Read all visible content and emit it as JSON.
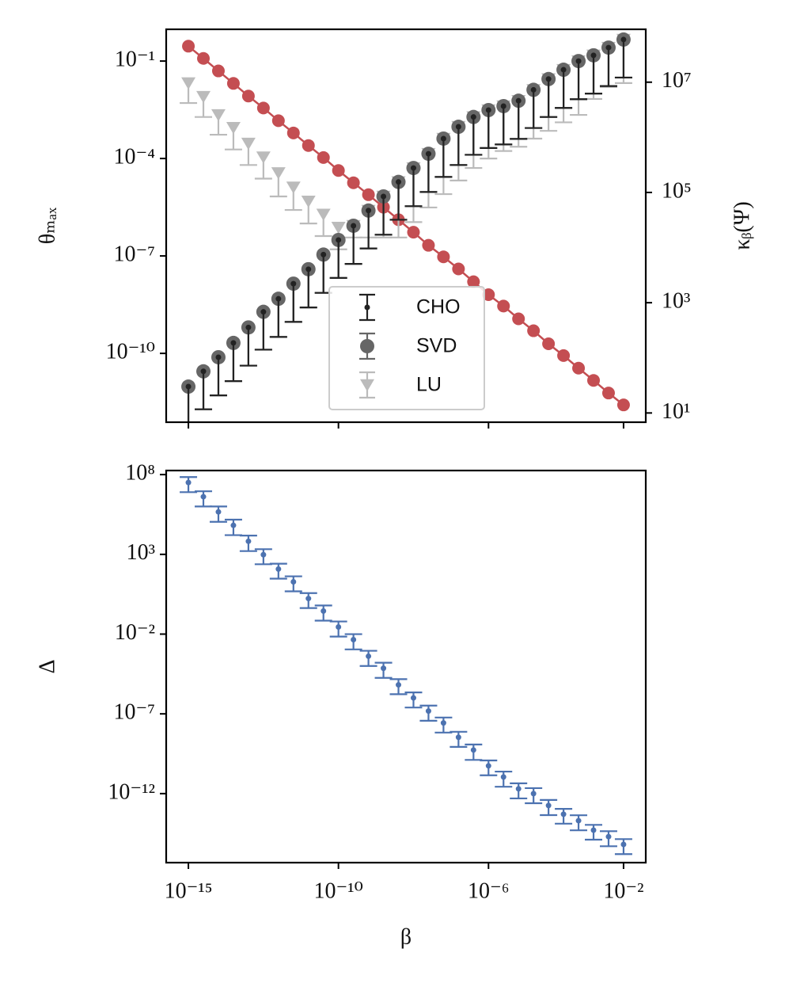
{
  "chart_data": [
    {
      "type": "errorbar",
      "y_label": "θₘₐₓ",
      "y2_label": "κᵦ(Ψ)",
      "log_y": true,
      "log_y2": true,
      "ylim": [
        7.6e-13,
        0.95
      ],
      "yticks": [
        {
          "value": 0.1,
          "label": "10⁻¹"
        },
        {
          "value": 0.0001,
          "label": "10⁻⁴"
        },
        {
          "value": 1e-07,
          "label": "10⁻⁷"
        },
        {
          "value": 1e-10,
          "label": "10⁻¹⁰"
        }
      ],
      "y2lim": [
        6.8,
        91000000.0
      ],
      "y2ticks": [
        {
          "value": 10000000.0,
          "label": "10⁷"
        },
        {
          "value": 100000.0,
          "label": "10⁵"
        },
        {
          "value": 1000.0,
          "label": "10³"
        },
        {
          "value": 10,
          "label": "10¹"
        }
      ],
      "y2_color": "#c44e52",
      "legend": "lower center",
      "series": [
        {
          "name": "CHO",
          "color": "#222222",
          "marker": ".",
          "values": [
            9.5e-12,
            2.8e-11,
            7.6e-11,
            2.1e-10,
            6.3e-10,
            1.9e-09,
            4.8e-09,
            1.4e-08,
            3.9e-08,
            1.1e-07,
            3.1e-07,
            8.5e-07,
            2.5e-06,
            6.8e-06,
            1.9e-05,
            5.1e-05,
            0.00014,
            0.00041,
            0.00095,
            0.0019,
            0.0031,
            0.0041,
            0.006,
            0.013,
            0.028,
            0.054,
            0.1,
            0.15,
            0.26,
            0.46
          ],
          "lower": [
            6.3e-13,
            1.9e-12,
            5.1e-12,
            1.4e-11,
            4.2e-11,
            1.3e-10,
            3.2e-10,
            9.3e-10,
            2.6e-09,
            7.3e-09,
            2.1e-08,
            5.7e-08,
            1.7e-07,
            4.5e-07,
            1.3e-06,
            3.4e-06,
            9.3e-06,
            2.7e-05,
            6.3e-05,
            0.00013,
            0.00021,
            0.00027,
            0.0004,
            0.00087,
            0.0019,
            0.0036,
            0.0067,
            0.01,
            0.017,
            0.031
          ]
        },
        {
          "name": "SVD",
          "color": "#666666",
          "marker": "o",
          "values": [
            9.5e-12,
            2.8e-11,
            7.6e-11,
            2.1e-10,
            6.3e-10,
            1.9e-09,
            4.8e-09,
            1.4e-08,
            3.9e-08,
            1.1e-07,
            3.1e-07,
            8.5e-07,
            2.5e-06,
            6.8e-06,
            1.9e-05,
            5.1e-05,
            0.00014,
            0.00041,
            0.00095,
            0.0019,
            0.0031,
            0.0041,
            0.006,
            0.013,
            0.028,
            0.054,
            0.1,
            0.15,
            0.26,
            0.46
          ],
          "lower": [
            6.3e-13,
            1.9e-12,
            5.1e-12,
            1.4e-11,
            4.2e-11,
            1.3e-10,
            3.2e-10,
            9.3e-10,
            2.6e-09,
            7.3e-09,
            2.1e-08,
            5.7e-08,
            1.7e-07,
            4.5e-07,
            1.3e-06,
            3.4e-06,
            9.3e-06,
            2.7e-05,
            6.3e-05,
            0.00013,
            0.00021,
            0.00027,
            0.0004,
            0.00087,
            0.0019,
            0.0036,
            0.0067,
            0.01,
            0.017,
            0.031
          ]
        },
        {
          "name": "LU",
          "color": "#bbbbbb",
          "marker": "v",
          "values": [
            0.021,
            0.008,
            0.0022,
            0.00089,
            0.00029,
            0.00011,
            3.6e-05,
            1.3e-05,
            4.8e-06,
            1.9e-06,
            7.5e-07,
            8.5e-07,
            2.5e-06,
            6.8e-06,
            1.9e-05,
            5.1e-05,
            0.00014,
            0.00041,
            0.00095,
            0.0019,
            0.0031,
            0.0041,
            0.006,
            0.013,
            0.028,
            0.054,
            0.1,
            0.15,
            0.26,
            0.46
          ],
          "lower": [
            0.0051,
            0.0019,
            0.00054,
            0.00019,
            6.3e-05,
            2.4e-05,
            6.8e-06,
            2.6e-06,
            1e-06,
            4.1e-07,
            1.6e-07,
            3.7e-07,
            3.7e-07,
            3.7e-07,
            3.7e-07,
            1.1e-06,
            3.1e-06,
            8e-06,
            2.1e-05,
            5.1e-05,
            0.0001,
            0.00017,
            0.00023,
            0.00041,
            0.00071,
            0.0013,
            0.0022,
            0.0068,
            0.016,
            0.021
          ]
        },
        {
          "color": "#c44e52",
          "marker": "o-",
          "axis": "y2",
          "values": [
            45000000.0,
            27000000.0,
            16000000.0,
            9500000.0,
            5600000.0,
            3400000.0,
            2000000.0,
            1200000.0,
            710000.0,
            430000.0,
            250000.0,
            150000.0,
            91000.0,
            54000.0,
            32000.0,
            19000.0,
            11000.0,
            6800.0,
            4100.0,
            2400.0,
            1400.0,
            870,
            510,
            310,
            180,
            110,
            65,
            39,
            23,
            14
          ]
        }
      ]
    },
    {
      "type": "errorbar",
      "y_label": "Δ",
      "x_label": "β",
      "log_y": true,
      "categories": [
        "10⁻¹⁵",
        null,
        null,
        null,
        null,
        null,
        null,
        null,
        null,
        null,
        "10⁻¹⁰",
        null,
        null,
        null,
        null,
        null,
        null,
        null,
        null,
        null,
        "10⁻⁶",
        null,
        null,
        null,
        null,
        null,
        null,
        null,
        null,
        "10⁻²"
      ],
      "ylim": [
        4.7e-17,
        180000000.0
      ],
      "yticks": [
        {
          "value": 100000000.0,
          "label": "10⁸"
        },
        {
          "value": 1000.0,
          "label": "10³"
        },
        {
          "value": 0.01,
          "label": "10⁻²"
        },
        {
          "value": 1e-07,
          "label": "10⁻⁷"
        },
        {
          "value": 1e-12,
          "label": "10⁻¹²"
        }
      ],
      "series": [
        {
          "color": "#4c72b0",
          "marker": ".",
          "values": [
            32000000.0,
            4100000.0,
            460000.0,
            66000.0,
            6600.0,
            950,
            120,
            19,
            1.7,
            0.28,
            0.028,
            0.0045,
            0.00041,
            7.2e-05,
            6.6e-06,
            1e-06,
            1.5e-07,
            2.7e-08,
            3.4e-09,
            5.4e-10,
            5.5e-11,
            1.1e-11,
            2e-12,
            1e-12,
            1.8e-13,
            5.1e-14,
            2e-14,
            5.1e-15,
            2e-15,
            6.5e-16
          ],
          "upper": [
            70000000.0,
            9000000.0,
            1000000.0,
            150000.0,
            15000.0,
            2100,
            260,
            42,
            3.7,
            0.62,
            0.062,
            0.0099,
            0.0009,
            0.00016,
            1.5e-05,
            2.2e-06,
            3.3e-07,
            5.9e-08,
            7.5e-09,
            1.2e-09,
            1.2e-10,
            2.4e-11,
            4.4e-12,
            2.2e-12,
            4e-13,
            1.1e-13,
            4.4e-14,
            1.1e-14,
            4.4e-15,
            1.4e-15
          ],
          "lower": [
            7900000.0,
            1000000.0,
            110000.0,
            16000.0,
            1600.0,
            240,
            30,
            4.8,
            0.43,
            0.07,
            0.007,
            0.0011,
            0.0001,
            1.8e-05,
            1.7e-06,
            2.5e-07,
            3.7e-08,
            6.7e-09,
            8.5e-10,
            1.3e-10,
            1.4e-11,
            2.7e-12,
            5e-13,
            2.5e-13,
            4.5e-14,
            1.3e-14,
            5e-15,
            1.3e-15,
            5e-16,
            1.6e-16
          ]
        }
      ]
    }
  ]
}
